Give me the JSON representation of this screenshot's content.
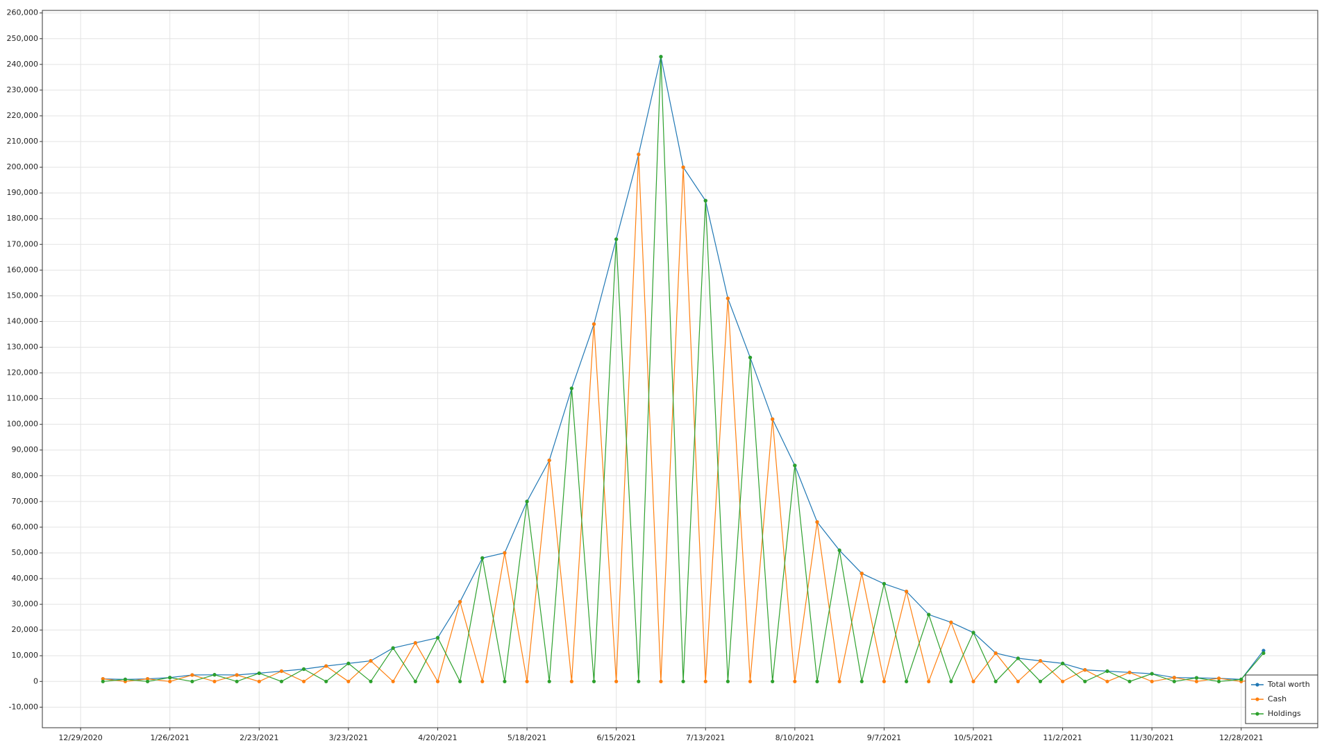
{
  "chart_data": {
    "type": "line",
    "x": [
      "1/5/2021",
      "1/12/2021",
      "1/19/2021",
      "1/26/2021",
      "2/2/2021",
      "2/9/2021",
      "2/16/2021",
      "2/23/2021",
      "3/2/2021",
      "3/9/2021",
      "3/16/2021",
      "3/23/2021",
      "3/30/2021",
      "4/6/2021",
      "4/13/2021",
      "4/20/2021",
      "4/27/2021",
      "5/4/2021",
      "5/11/2021",
      "5/18/2021",
      "5/25/2021",
      "6/1/2021",
      "6/8/2021",
      "6/15/2021",
      "6/22/2021",
      "6/29/2021",
      "7/6/2021",
      "7/13/2021",
      "7/20/2021",
      "7/27/2021",
      "8/3/2021",
      "8/10/2021",
      "8/17/2021",
      "8/24/2021",
      "8/31/2021",
      "9/7/2021",
      "9/14/2021",
      "9/21/2021",
      "9/28/2021",
      "10/5/2021",
      "10/12/2021",
      "10/19/2021",
      "10/26/2021",
      "11/2/2021",
      "11/9/2021",
      "11/16/2021",
      "11/23/2021",
      "11/30/2021",
      "12/7/2021",
      "12/14/2021",
      "12/21/2021",
      "12/28/2021",
      "1/4/2022"
    ],
    "series": [
      {
        "name": "Total worth",
        "color": "#1f77b4",
        "values": [
          1000,
          800,
          1000,
          1500,
          2500,
          2600,
          2500,
          3200,
          4000,
          4800,
          6000,
          7000,
          8000,
          13000,
          15000,
          17000,
          31000,
          48000,
          50000,
          70000,
          86000,
          114000,
          139000,
          172000,
          205000,
          243000,
          200000,
          187000,
          149000,
          126000,
          102000,
          84000,
          62000,
          51000,
          42000,
          38000,
          35000,
          26000,
          23000,
          19000,
          11000,
          9000,
          8000,
          7000,
          4500,
          4000,
          3500,
          3000,
          1500,
          1400,
          1200,
          800,
          12000
        ]
      },
      {
        "name": "Cash",
        "color": "#ff7f0e",
        "values": [
          1000,
          0,
          1000,
          0,
          2500,
          0,
          2500,
          0,
          4000,
          0,
          6000,
          0,
          8000,
          0,
          15000,
          0,
          31000,
          0,
          50000,
          0,
          86000,
          0,
          139000,
          0,
          205000,
          0,
          200000,
          0,
          149000,
          0,
          102000,
          0,
          62000,
          0,
          42000,
          0,
          35000,
          0,
          23000,
          0,
          11000,
          0,
          8000,
          0,
          4500,
          0,
          3500,
          0,
          1500,
          0,
          1200,
          0,
          1000
        ]
      },
      {
        "name": "Holdings",
        "color": "#2ca02c",
        "values": [
          0,
          800,
          0,
          1500,
          0,
          2600,
          0,
          3200,
          0,
          4800,
          0,
          7000,
          0,
          13000,
          0,
          17000,
          0,
          48000,
          0,
          70000,
          0,
          114000,
          0,
          172000,
          0,
          243000,
          0,
          187000,
          0,
          126000,
          0,
          84000,
          0,
          51000,
          0,
          38000,
          0,
          26000,
          0,
          19000,
          0,
          9000,
          0,
          7000,
          0,
          4000,
          0,
          3000,
          0,
          1400,
          0,
          800,
          11000
        ]
      }
    ],
    "xlim": [
      "12/17/2020",
      "1/21/2022"
    ],
    "xticks": [
      "12/29/2020",
      "1/26/2021",
      "2/23/2021",
      "3/23/2021",
      "4/20/2021",
      "5/18/2021",
      "6/15/2021",
      "7/13/2021",
      "8/10/2021",
      "9/7/2021",
      "10/5/2021",
      "11/2/2021",
      "11/30/2021",
      "12/28/2021"
    ],
    "ylim": [
      -18000,
      261000
    ],
    "yticks": [
      {
        "value": -10000,
        "label": "-10,000"
      },
      0,
      {
        "value": 10000,
        "label": "10,000"
      },
      {
        "value": 20000,
        "label": "20,000"
      },
      {
        "value": 30000,
        "label": "30,000"
      },
      {
        "value": 40000,
        "label": "40,000"
      },
      {
        "value": 50000,
        "label": "50,000"
      },
      {
        "value": 60000,
        "label": "60,000"
      },
      {
        "value": 70000,
        "label": "70,000"
      },
      {
        "value": 80000,
        "label": "80,000"
      },
      {
        "value": 90000,
        "label": "90,000"
      },
      {
        "value": 100000,
        "label": "100,000"
      },
      {
        "value": 110000,
        "label": "110,000"
      },
      {
        "value": 120000,
        "label": "120,000"
      },
      {
        "value": 130000,
        "label": "130,000"
      },
      {
        "value": 140000,
        "label": "140,000"
      },
      {
        "value": 150000,
        "label": "150,000"
      },
      {
        "value": 160000,
        "label": "160,000"
      },
      {
        "value": 170000,
        "label": "170,000"
      },
      {
        "value": 180000,
        "label": "180,000"
      },
      {
        "value": 190000,
        "label": "190,000"
      },
      {
        "value": 200000,
        "label": "200,000"
      },
      {
        "value": 210000,
        "label": "210,000"
      },
      {
        "value": 220000,
        "label": "220,000"
      },
      {
        "value": 230000,
        "label": "230,000"
      },
      {
        "value": 240000,
        "label": "240,000"
      },
      {
        "value": 250000,
        "label": "250,000"
      },
      {
        "value": 260000,
        "label": "260,000"
      }
    ],
    "grid": true,
    "legend": "bottom-right"
  }
}
